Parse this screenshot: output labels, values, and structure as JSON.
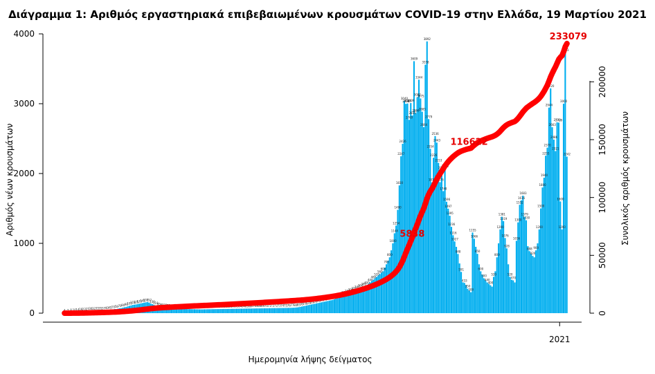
{
  "chart_data": {
    "type": "bar",
    "title": "Διάγραμμα 1: Αριθμός εργαστηριακά επιβεβαιωμένων κρουσμάτων COVID-19 στην Ελλάδα, 19 Μαρτίου 2021",
    "xlabel": "Ημερομηνία λήψης δείγματος",
    "ylabel": "Αριθμός νέων κρουσμάτων",
    "y2label": "Συνολικός αριθμός κρουσμάτων",
    "x_tick_labels": [
      {
        "label": "2021",
        "day_index": 305
      }
    ],
    "ylim": [
      0,
      4000
    ],
    "y_ticks": [
      0,
      1000,
      2000,
      3000,
      4000
    ],
    "y2lim": [
      0,
      233079
    ],
    "y2_ticks": [
      0,
      50000,
      100000,
      150000,
      200000
    ],
    "grid": false,
    "colors": {
      "bars": "#00aeef",
      "cumulative": "#ff0000"
    },
    "series": [
      {
        "name": "",
        "type": "bar",
        "day_start": 0,
        "values": [
          4,
          6,
          7,
          8,
          8,
          9,
          10,
          12,
          14,
          16,
          18,
          20,
          22,
          25,
          27,
          29,
          30,
          31,
          32,
          32,
          33,
          34,
          35,
          36,
          37,
          38,
          40,
          42,
          45,
          50,
          55,
          60,
          58,
          65,
          70,
          72,
          80,
          85,
          90,
          98,
          105,
          110,
          118,
          122,
          125,
          130,
          135,
          140,
          145,
          150,
          155,
          159,
          152,
          140,
          130,
          120,
          110,
          100,
          95,
          90,
          85,
          80,
          78,
          75,
          73,
          70,
          68,
          66,
          65,
          64,
          63,
          62,
          61,
          60,
          60,
          59,
          58,
          58,
          57,
          56,
          56,
          55,
          55,
          54,
          54,
          54,
          55,
          55,
          56,
          56,
          56,
          57,
          57,
          58,
          58,
          58,
          59,
          59,
          60,
          60,
          60,
          61,
          61,
          62,
          62,
          62,
          63,
          63,
          64,
          64,
          64,
          65,
          65,
          66,
          66,
          66,
          67,
          67,
          68,
          68,
          68,
          69,
          69,
          70,
          70,
          70,
          71,
          71,
          72,
          72,
          72,
          73,
          73,
          74,
          74,
          74,
          75,
          75,
          76,
          76,
          77,
          78,
          80,
          82,
          85,
          90,
          95,
          100,
          105,
          110,
          115,
          120,
          125,
          130,
          135,
          140,
          145,
          150,
          155,
          160,
          165,
          170,
          175,
          180,
          185,
          190,
          200,
          210,
          220,
          230,
          240,
          250,
          260,
          270,
          280,
          290,
          300,
          310,
          320,
          330,
          340,
          350,
          360,
          370,
          380,
          390,
          400,
          420,
          440,
          460,
          480,
          500,
          520,
          540,
          560,
          580,
          600,
          650,
          700,
          750,
          800,
          900,
          1000,
          1144,
          1254,
          1480,
          1830,
          2247,
          2426,
          3040,
          2998,
          3003,
          2769,
          3009,
          2831,
          3609,
          2866,
          3092,
          3344,
          3075,
          2885,
          2664,
          3558,
          3892,
          2779,
          2354,
          1874,
          2226,
          2536,
          2443,
          2153,
          1876,
          2050,
          1748,
          2068,
          1596,
          1497,
          1395,
          1236,
          1116,
          1027,
          950,
          848,
          712,
          591,
          442,
          433,
          400,
          350,
          322,
          300,
          1155,
          1066,
          950,
          850,
          700,
          600,
          550,
          500,
          470,
          440,
          420,
          400,
          380,
          520,
          600,
          800,
          1000,
          1200,
          1381,
          1319,
          1076,
          928,
          700,
          520,
          478,
          470,
          440,
          1036,
          1300,
          1552,
          1616,
          1683,
          1379,
          1330,
          960,
          888,
          850,
          820,
          800,
          900,
          1000,
          1200,
          1500,
          1800,
          1940,
          2255,
          2370,
          2944,
          3220,
          2663,
          2486,
          2321,
          2733,
          2729,
          1600,
          1200,
          3000,
          3733,
          2242
        ]
      },
      {
        "name": "",
        "type": "line",
        "day_start": 0,
        "note_values": "cumulative total computed from daily values",
        "final_value": 233079
      }
    ],
    "annotations": [
      {
        "text": "5838",
        "day_index": 213
      },
      {
        "text": "116622",
        "day_index": 248
      },
      {
        "text": "233079",
        "day_index": 333
      }
    ]
  }
}
